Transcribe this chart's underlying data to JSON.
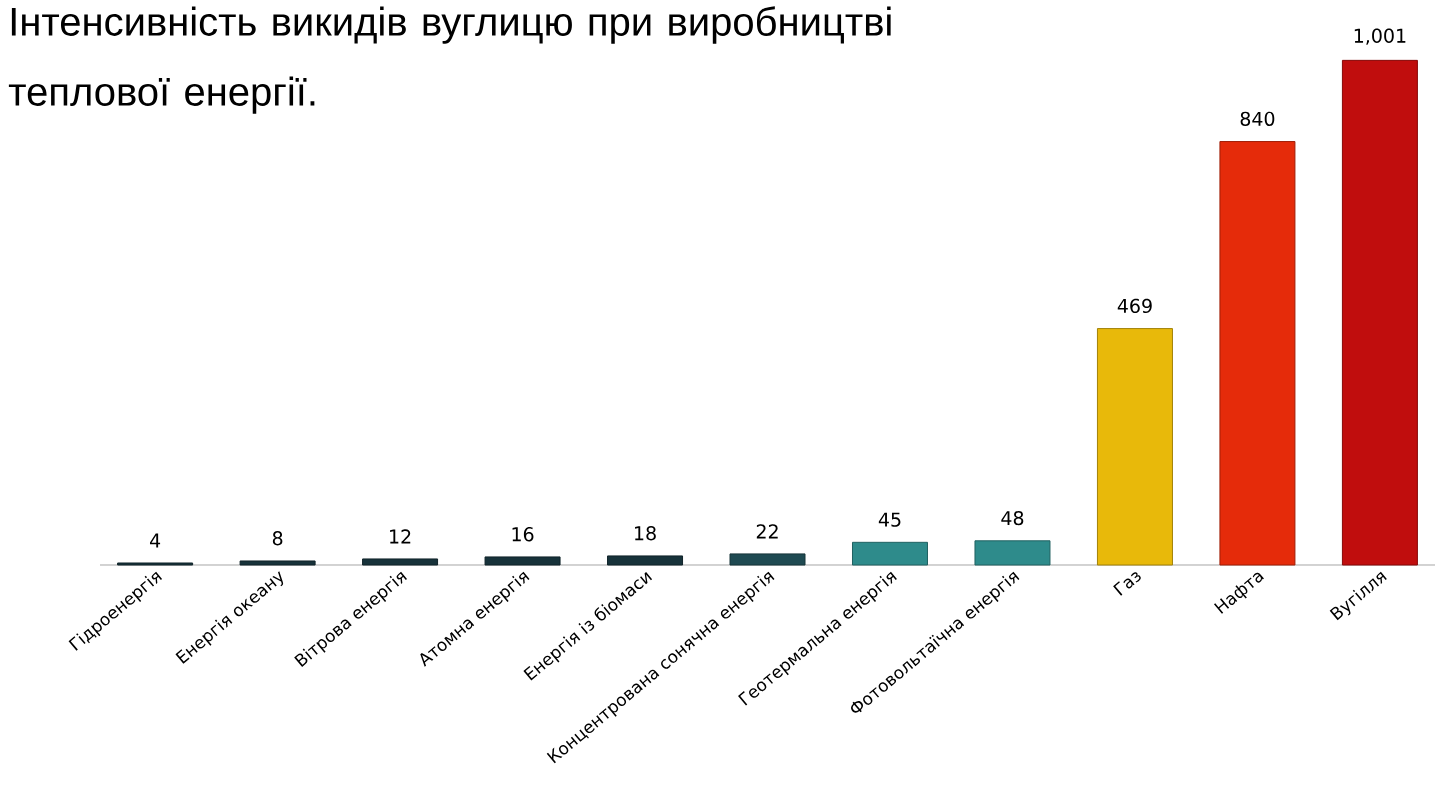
{
  "chart_data": {
    "type": "bar",
    "title": "Інтенсивність викидів вуглицю при виробництві теплової енергії.",
    "categories": [
      "Гідроенергія",
      "Енергія океану",
      "Вітрова енергія",
      "Атомна енергія",
      "Енергія із біомаси",
      "Концентрована сонячна енергія",
      "Геотермальна енергія",
      "Фотовольтаїчна енергія",
      "Газ",
      "Нафта",
      "Вугілля"
    ],
    "values": [
      4,
      8,
      12,
      16,
      18,
      22,
      45,
      48,
      469,
      840,
      1001
    ],
    "value_labels": [
      "4",
      "8",
      "12",
      "16",
      "18",
      "22",
      "45",
      "48",
      "469",
      "840",
      "1,001"
    ],
    "colors": [
      "#17323a",
      "#17323a",
      "#17323a",
      "#17323a",
      "#17323a",
      "#1f4a52",
      "#2e8b8b",
      "#2e8b8b",
      "#e8b90a",
      "#e52b0a",
      "#c00d0d"
    ]
  }
}
